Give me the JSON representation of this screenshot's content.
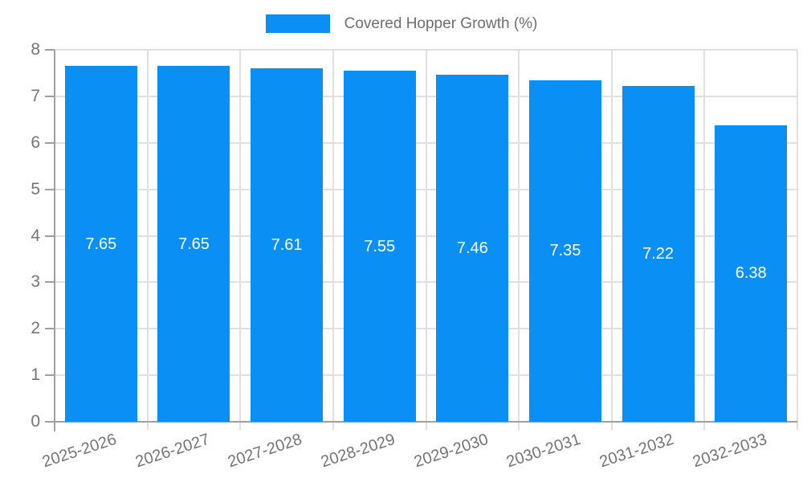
{
  "legend": {
    "label": "Covered Hopper Growth (%)"
  },
  "chart_data": {
    "type": "bar",
    "title": "Covered Hopper Growth (%)",
    "categories": [
      "2025-2026",
      "2026-2027",
      "2027-2028",
      "2028-2029",
      "2029-2030",
      "2030-2031",
      "2031-2032",
      "2032-2033"
    ],
    "values": [
      7.65,
      7.65,
      7.61,
      7.55,
      7.46,
      7.35,
      7.22,
      6.38
    ],
    "value_labels": [
      "7.65",
      "7.65",
      "7.61",
      "7.55",
      "7.46",
      "7.35",
      "7.22",
      "6.38"
    ],
    "xlabel": "",
    "ylabel": "",
    "ylim": [
      0,
      8
    ],
    "ytick_step": 1,
    "yticks": [
      "0",
      "1",
      "2",
      "3",
      "4",
      "5",
      "6",
      "7",
      "8"
    ],
    "grid": true,
    "legend_position": "top",
    "bar_color": "#0a90f5",
    "value_label_color": "#ffffff",
    "grid_color": "#e0e0e0",
    "axis_color": "#a0a0a0",
    "tick_label_color": "#757575",
    "legend_text_color": "#6e6e6e"
  }
}
